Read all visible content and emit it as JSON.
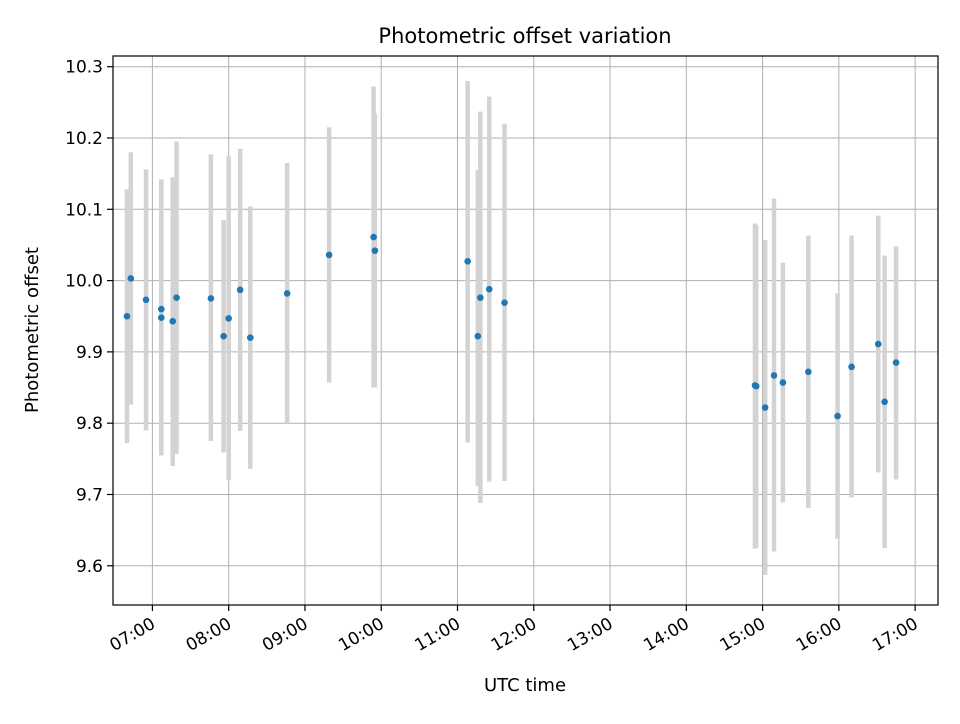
{
  "chart_data": {
    "type": "scatter",
    "title": "Photometric offset variation",
    "xlabel": "UTC time",
    "ylabel": "Photometric offset",
    "x_tick_labels": [
      "07:00",
      "08:00",
      "09:00",
      "10:00",
      "11:00",
      "12:00",
      "13:00",
      "14:00",
      "15:00",
      "16:00",
      "17:00"
    ],
    "y_tick_labels": [
      "9.6",
      "9.7",
      "9.8",
      "9.9",
      "10.0",
      "10.1",
      "10.2",
      "10.3"
    ],
    "xlim": [
      "06:29",
      "17:18"
    ],
    "ylim": [
      9.545,
      10.315
    ],
    "grid": true,
    "legend": "none",
    "colors": {
      "point": "#1f77b4",
      "errorbar": "#d3d3d3",
      "grid": "#b0b0b0"
    },
    "series": [
      {
        "points": [
          {
            "x": "06:40",
            "y": 9.95,
            "low": 9.772,
            "high": 10.128
          },
          {
            "x": "06:43",
            "y": 10.003,
            "low": 9.826,
            "high": 10.18
          },
          {
            "x": "06:55",
            "y": 9.973,
            "low": 9.79,
            "high": 10.156
          },
          {
            "x": "07:07",
            "y": 9.96,
            "low": 9.755,
            "high": 10.142
          },
          {
            "x": "07:07",
            "y": 9.948,
            "low": 9.755,
            "high": 10.142
          },
          {
            "x": "07:16",
            "y": 9.943,
            "low": 9.74,
            "high": 10.145
          },
          {
            "x": "07:19",
            "y": 9.976,
            "low": 9.757,
            "high": 10.195
          },
          {
            "x": "07:46",
            "y": 9.975,
            "low": 9.775,
            "high": 10.177
          },
          {
            "x": "07:56",
            "y": 9.922,
            "low": 9.759,
            "high": 10.085
          },
          {
            "x": "08:00",
            "y": 9.947,
            "low": 9.72,
            "high": 10.175
          },
          {
            "x": "08:09",
            "y": 9.987,
            "low": 9.789,
            "high": 10.185
          },
          {
            "x": "08:17",
            "y": 9.92,
            "low": 9.736,
            "high": 10.104
          },
          {
            "x": "08:46",
            "y": 9.982,
            "low": 9.8,
            "high": 10.165
          },
          {
            "x": "09:19",
            "y": 10.036,
            "low": 9.857,
            "high": 10.215
          },
          {
            "x": "09:54",
            "y": 10.061,
            "low": 9.85,
            "high": 10.272
          },
          {
            "x": "09:55",
            "y": 10.042,
            "low": 9.85,
            "high": 10.234
          },
          {
            "x": "11:08",
            "y": 10.027,
            "low": 9.773,
            "high": 10.28
          },
          {
            "x": "11:16",
            "y": 9.922,
            "low": 9.712,
            "high": 10.155
          },
          {
            "x": "11:18",
            "y": 9.976,
            "low": 9.688,
            "high": 10.237
          },
          {
            "x": "11:25",
            "y": 9.988,
            "low": 9.718,
            "high": 10.258
          },
          {
            "x": "11:37",
            "y": 9.969,
            "low": 9.719,
            "high": 10.22
          },
          {
            "x": "14:54",
            "y": 9.853,
            "low": 9.624,
            "high": 10.08
          },
          {
            "x": "14:55",
            "y": 9.852,
            "low": 9.626,
            "high": 10.078
          },
          {
            "x": "15:02",
            "y": 9.822,
            "low": 9.587,
            "high": 10.057
          },
          {
            "x": "15:09",
            "y": 9.867,
            "low": 9.62,
            "high": 10.115
          },
          {
            "x": "15:16",
            "y": 9.857,
            "low": 9.689,
            "high": 10.025
          },
          {
            "x": "15:36",
            "y": 9.872,
            "low": 9.681,
            "high": 10.063
          },
          {
            "x": "15:59",
            "y": 9.81,
            "low": 9.638,
            "high": 9.982
          },
          {
            "x": "16:10",
            "y": 9.879,
            "low": 9.696,
            "high": 10.063
          },
          {
            "x": "16:31",
            "y": 9.911,
            "low": 9.731,
            "high": 10.091
          },
          {
            "x": "16:36",
            "y": 9.83,
            "low": 9.625,
            "high": 10.035
          },
          {
            "x": "16:45",
            "y": 9.885,
            "low": 9.721,
            "high": 10.048
          }
        ]
      }
    ]
  }
}
